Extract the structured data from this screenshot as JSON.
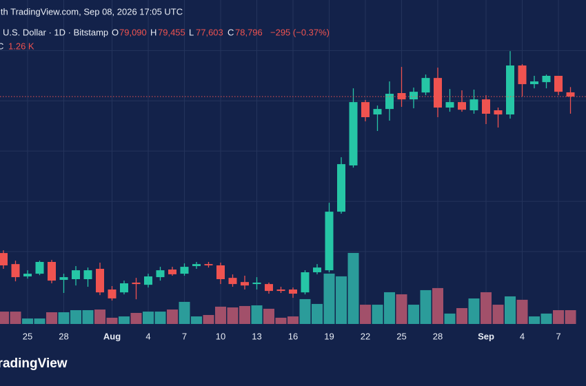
{
  "chart_data": {
    "type": "candlestick",
    "header": {
      "source": "ith TradingView.com, Sep 08, 2026 17:05 UTC",
      "symbol": "U.S. Dollar · 1D · Bitstamp",
      "ohlc": [
        {
          "key": "O",
          "value": "79,090"
        },
        {
          "key": "H",
          "value": "79,455"
        },
        {
          "key": "L",
          "value": "77,603"
        },
        {
          "key": "C",
          "value": "78,796"
        }
      ],
      "change": "−295 (−0.37%)",
      "volume_key": "C",
      "volume_value": "1.26 K"
    },
    "brand": "TradingView",
    "categories": [
      null,
      null,
      "25",
      null,
      null,
      "28",
      null,
      null,
      null,
      "Aug",
      null,
      null,
      "4",
      null,
      null,
      "7",
      null,
      null,
      "10",
      null,
      null,
      "13",
      null,
      null,
      "16",
      null,
      null,
      "19",
      null,
      null,
      "22",
      null,
      null,
      "25",
      null,
      null,
      "28",
      null,
      null,
      null,
      "Sep",
      null,
      null,
      "4",
      null,
      null,
      "7",
      null
    ],
    "open": [
      67900,
      67130,
      66270,
      66460,
      67280,
      66030,
      66080,
      66080,
      66800,
      65360,
      65160,
      65840,
      65690,
      66220,
      66750,
      66460,
      66990,
      67130,
      67040,
      66170,
      65880,
      65740,
      65740,
      65360,
      65360,
      65160,
      66560,
      66700,
      70780,
      74000,
      78410,
      77550,
      77930,
      79040,
      78600,
      79080,
      80090,
      78030,
      78410,
      77840,
      78600,
      77840,
      77550,
      80960,
      79660,
      79800,
      80240,
      79090
    ],
    "high": [
      68090,
      67370,
      66700,
      67370,
      67420,
      66460,
      66990,
      66890,
      67230,
      65600,
      65980,
      66170,
      66460,
      66940,
      66940,
      67180,
      67280,
      67280,
      67230,
      66410,
      66320,
      66220,
      65840,
      65550,
      65500,
      66700,
      67130,
      71400,
      74570,
      79370,
      78560,
      78170,
      79850,
      80860,
      79420,
      80330,
      80810,
      79320,
      79230,
      79280,
      78890,
      78030,
      81960,
      81050,
      80240,
      80330,
      80240,
      79455
    ],
    "low": [
      66800,
      65930,
      66120,
      66360,
      65790,
      65120,
      65640,
      65550,
      64970,
      64590,
      65020,
      64680,
      65500,
      65980,
      66320,
      66320,
      66800,
      66890,
      65740,
      65550,
      65360,
      65360,
      65070,
      65120,
      64780,
      65020,
      66420,
      66560,
      70640,
      73850,
      77070,
      76400,
      77120,
      78080,
      77980,
      78890,
      77360,
      77740,
      77740,
      77600,
      76880,
      76640,
      77260,
      78800,
      79370,
      79370,
      78890,
      77603
    ],
    "close": [
      67040,
      66220,
      66460,
      67280,
      65980,
      66220,
      66700,
      66700,
      65160,
      64740,
      65790,
      65740,
      66270,
      66700,
      66420,
      66940,
      67130,
      67040,
      66080,
      65740,
      65640,
      65840,
      65260,
      65260,
      65070,
      66560,
      66890,
      70780,
      74090,
      78410,
      77360,
      77930,
      78990,
      78600,
      79130,
      80090,
      78030,
      78410,
      77880,
      78600,
      77600,
      77550,
      80960,
      79660,
      79850,
      80240,
      79130,
      78796
    ],
    "volume": [
      1130,
      1130,
      500,
      500,
      1070,
      1070,
      1260,
      1260,
      1320,
      570,
      690,
      1010,
      1130,
      1130,
      1320,
      2020,
      690,
      820,
      1580,
      1510,
      1640,
      1700,
      1390,
      570,
      690,
      2270,
      1830,
      4600,
      4350,
      6490,
      1760,
      1760,
      2900,
      2710,
      1760,
      3090,
      3280,
      950,
      1450,
      2330,
      2900,
      1760,
      2520,
      2210,
      690,
      950,
      1260,
      1260
    ],
    "ylim": [
      62960,
      85520
    ],
    "yticks": [
      68000,
      71500,
      75000,
      78500,
      82000
    ],
    "y2lim": [
      0,
      29600
    ],
    "up_color": "#26c6a6",
    "down_color": "#ef5350",
    "volume_up_color": "#2b9c9a",
    "volume_down_color": "#a2506a",
    "grid": true,
    "last_price_line": true
  }
}
